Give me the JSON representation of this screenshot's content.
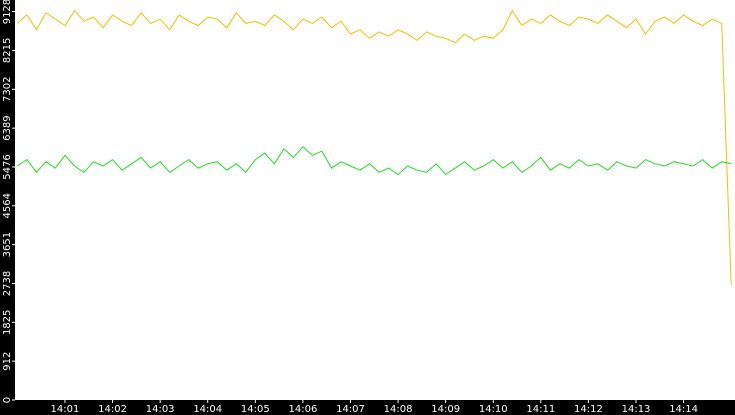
{
  "chart_data": {
    "type": "line",
    "x": [
      840.0,
      840.2,
      840.4,
      840.6,
      840.8,
      841.0,
      841.2,
      841.4,
      841.6,
      841.8,
      842.0,
      842.2,
      842.4,
      842.6,
      842.8,
      843.0,
      843.2,
      843.4,
      843.6,
      843.8,
      844.0,
      844.2,
      844.4,
      844.6,
      844.8,
      845.0,
      845.2,
      845.4,
      845.6,
      845.8,
      846.0,
      846.2,
      846.4,
      846.6,
      846.8,
      847.0,
      847.2,
      847.4,
      847.6,
      847.8,
      848.0,
      848.2,
      848.4,
      848.6,
      848.8,
      849.0,
      849.2,
      849.4,
      849.6,
      849.8,
      850.0,
      850.2,
      850.4,
      850.6,
      850.8,
      851.0,
      851.2,
      851.4,
      851.6,
      851.8,
      852.0,
      852.2,
      852.4,
      852.6,
      852.8,
      853.0,
      853.2,
      853.4,
      853.6,
      853.8,
      854.0,
      854.2,
      854.4,
      854.6,
      854.8,
      855.0
    ],
    "series": [
      {
        "color": "#f0c000",
        "values": [
          8850,
          9050,
          8700,
          9100,
          8950,
          8800,
          9150,
          8900,
          9000,
          8750,
          9050,
          8900,
          8800,
          9100,
          8850,
          8950,
          8700,
          9050,
          8900,
          8800,
          9000,
          8950,
          8750,
          9100,
          8850,
          8900,
          8800,
          9050,
          8900,
          8700,
          8950,
          8850,
          9000,
          8750,
          8900,
          8600,
          8700,
          8500,
          8650,
          8550,
          8700,
          8600,
          8450,
          8650,
          8550,
          8500,
          8400,
          8600,
          8450,
          8550,
          8500,
          8700,
          9150,
          8800,
          8950,
          8850,
          9050,
          8900,
          8800,
          9000,
          8950,
          8850,
          9050,
          8900,
          8750,
          8950,
          8600,
          8900,
          9000,
          8850,
          9050,
          8900,
          8800,
          8950,
          8850,
          2700
        ]
      },
      {
        "color": "#22dd22",
        "values": [
          5500,
          5650,
          5350,
          5600,
          5450,
          5750,
          5500,
          5350,
          5600,
          5500,
          5650,
          5400,
          5550,
          5700,
          5450,
          5600,
          5350,
          5500,
          5650,
          5450,
          5550,
          5600,
          5400,
          5550,
          5350,
          5650,
          5800,
          5550,
          5900,
          5700,
          5950,
          5750,
          5850,
          5450,
          5600,
          5500,
          5400,
          5550,
          5350,
          5450,
          5300,
          5500,
          5400,
          5350,
          5550,
          5300,
          5450,
          5600,
          5400,
          5500,
          5650,
          5450,
          5600,
          5350,
          5500,
          5700,
          5400,
          5550,
          5450,
          5650,
          5500,
          5550,
          5400,
          5600,
          5500,
          5450,
          5650,
          5550,
          5500,
          5600,
          5550,
          5500,
          5650,
          5450,
          5600,
          5550
        ]
      }
    ],
    "xlim": [
      839.95,
      855.08
    ],
    "ylim": [
      0,
      9400
    ],
    "xticks": [
      {
        "value": 841,
        "label": "14:01"
      },
      {
        "value": 842,
        "label": "14:02"
      },
      {
        "value": 843,
        "label": "14:03"
      },
      {
        "value": 844,
        "label": "14:04"
      },
      {
        "value": 845,
        "label": "14:05"
      },
      {
        "value": 846,
        "label": "14:06"
      },
      {
        "value": 847,
        "label": "14:07"
      },
      {
        "value": 848,
        "label": "14:08"
      },
      {
        "value": 849,
        "label": "14:09"
      },
      {
        "value": 850,
        "label": "14:10"
      },
      {
        "value": 851,
        "label": "14:11"
      },
      {
        "value": 852,
        "label": "14:12"
      },
      {
        "value": 853,
        "label": "14:13"
      },
      {
        "value": 854,
        "label": "14:14"
      }
    ],
    "yticks": [
      0,
      912,
      1825,
      2738,
      3651,
      4564,
      5476,
      6389,
      7302,
      8215,
      9128
    ]
  }
}
